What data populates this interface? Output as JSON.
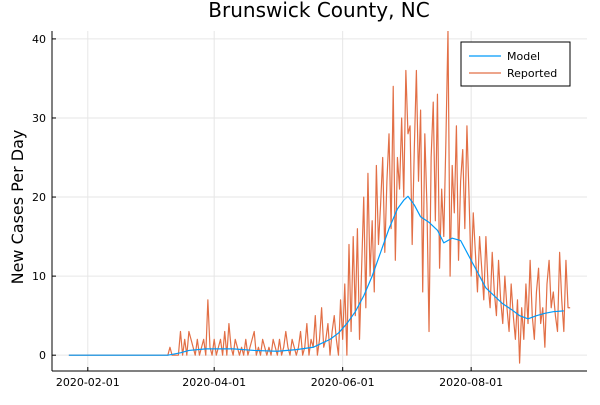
{
  "chart_data": {
    "type": "line",
    "title": "Brunswick County, NC",
    "xlabel": "",
    "ylabel": "New Cases Per Day",
    "x_start": "2020-01-23",
    "xlim": [
      "2020-01-15",
      "2020-09-25"
    ],
    "ylim": [
      -2,
      41
    ],
    "x_ticks": [
      "2020-02-01",
      "2020-04-01",
      "2020-06-01",
      "2020-08-01"
    ],
    "y_ticks": [
      0,
      10,
      20,
      30,
      40
    ],
    "grid": true,
    "legend_position": "top-right",
    "series": [
      {
        "name": "Model",
        "color": "#009af9",
        "points": [
          [
            "2020-01-23",
            0
          ],
          [
            "2020-03-10",
            0
          ],
          [
            "2020-03-16",
            0.3
          ],
          [
            "2020-03-20",
            0.6
          ],
          [
            "2020-03-28",
            0.8
          ],
          [
            "2020-04-10",
            0.8
          ],
          [
            "2020-04-20",
            0.6
          ],
          [
            "2020-05-01",
            0.5
          ],
          [
            "2020-05-10",
            0.7
          ],
          [
            "2020-05-18",
            1.0
          ],
          [
            "2020-05-22",
            1.5
          ],
          [
            "2020-05-26",
            2.0
          ],
          [
            "2020-05-30",
            2.8
          ],
          [
            "2020-06-03",
            4.0
          ],
          [
            "2020-06-07",
            5.5
          ],
          [
            "2020-06-11",
            7.5
          ],
          [
            "2020-06-15",
            10.0
          ],
          [
            "2020-06-19",
            13.0
          ],
          [
            "2020-06-23",
            16.0
          ],
          [
            "2020-06-27",
            18.5
          ],
          [
            "2020-06-30",
            19.6
          ],
          [
            "2020-07-02",
            20.1
          ],
          [
            "2020-07-05",
            19.0
          ],
          [
            "2020-07-08",
            17.5
          ],
          [
            "2020-07-12",
            16.8
          ],
          [
            "2020-07-16",
            15.8
          ],
          [
            "2020-07-19",
            14.2
          ],
          [
            "2020-07-23",
            14.8
          ],
          [
            "2020-07-27",
            14.5
          ],
          [
            "2020-07-31",
            12.5
          ],
          [
            "2020-08-04",
            10.5
          ],
          [
            "2020-08-08",
            8.5
          ],
          [
            "2020-08-12",
            7.5
          ],
          [
            "2020-08-16",
            6.5
          ],
          [
            "2020-08-20",
            5.8
          ],
          [
            "2020-08-24",
            5.0
          ],
          [
            "2020-08-28",
            4.6
          ],
          [
            "2020-09-01",
            5.0
          ],
          [
            "2020-09-05",
            5.3
          ],
          [
            "2020-09-09",
            5.5
          ],
          [
            "2020-09-14",
            5.6
          ]
        ]
      },
      {
        "name": "Reported",
        "color": "#e26f46",
        "points": [
          [
            "2020-01-23",
            0
          ],
          [
            "2020-03-10",
            0
          ],
          [
            "2020-03-11",
            1
          ],
          [
            "2020-03-12",
            0
          ],
          [
            "2020-03-15",
            0
          ],
          [
            "2020-03-16",
            3
          ],
          [
            "2020-03-17",
            0
          ],
          [
            "2020-03-18",
            2
          ],
          [
            "2020-03-19",
            0
          ],
          [
            "2020-03-20",
            3
          ],
          [
            "2020-03-21",
            2
          ],
          [
            "2020-03-22",
            1
          ],
          [
            "2020-03-23",
            0
          ],
          [
            "2020-03-24",
            2
          ],
          [
            "2020-03-25",
            0
          ],
          [
            "2020-03-26",
            1
          ],
          [
            "2020-03-27",
            2
          ],
          [
            "2020-03-28",
            0
          ],
          [
            "2020-03-29",
            7
          ],
          [
            "2020-03-30",
            1
          ],
          [
            "2020-03-31",
            0
          ],
          [
            "2020-04-01",
            2
          ],
          [
            "2020-04-02",
            0
          ],
          [
            "2020-04-03",
            1
          ],
          [
            "2020-04-04",
            2
          ],
          [
            "2020-04-05",
            0
          ],
          [
            "2020-04-06",
            3
          ],
          [
            "2020-04-07",
            0
          ],
          [
            "2020-04-08",
            4
          ],
          [
            "2020-04-09",
            1
          ],
          [
            "2020-04-10",
            0
          ],
          [
            "2020-04-11",
            2
          ],
          [
            "2020-04-12",
            1
          ],
          [
            "2020-04-13",
            0
          ],
          [
            "2020-04-14",
            1
          ],
          [
            "2020-04-15",
            0
          ],
          [
            "2020-04-16",
            2
          ],
          [
            "2020-04-17",
            0
          ],
          [
            "2020-04-18",
            1
          ],
          [
            "2020-04-20",
            3
          ],
          [
            "2020-04-21",
            0
          ],
          [
            "2020-04-22",
            1
          ],
          [
            "2020-04-23",
            0
          ],
          [
            "2020-04-24",
            2
          ],
          [
            "2020-04-25",
            1
          ],
          [
            "2020-04-26",
            0
          ],
          [
            "2020-04-27",
            1
          ],
          [
            "2020-04-28",
            0
          ],
          [
            "2020-04-29",
            2
          ],
          [
            "2020-04-30",
            1
          ],
          [
            "2020-05-01",
            0
          ],
          [
            "2020-05-02",
            2
          ],
          [
            "2020-05-03",
            0
          ],
          [
            "2020-05-04",
            1
          ],
          [
            "2020-05-05",
            3
          ],
          [
            "2020-05-06",
            1
          ],
          [
            "2020-05-07",
            0
          ],
          [
            "2020-05-08",
            2
          ],
          [
            "2020-05-09",
            1
          ],
          [
            "2020-05-10",
            0
          ],
          [
            "2020-05-11",
            1
          ],
          [
            "2020-05-12",
            3
          ],
          [
            "2020-05-13",
            0
          ],
          [
            "2020-05-14",
            1
          ],
          [
            "2020-05-15",
            4
          ],
          [
            "2020-05-16",
            0
          ],
          [
            "2020-05-17",
            2
          ],
          [
            "2020-05-18",
            1
          ],
          [
            "2020-05-19",
            5
          ],
          [
            "2020-05-20",
            0
          ],
          [
            "2020-05-21",
            2
          ],
          [
            "2020-05-22",
            6
          ],
          [
            "2020-05-23",
            1
          ],
          [
            "2020-05-24",
            2
          ],
          [
            "2020-05-25",
            4
          ],
          [
            "2020-05-26",
            0
          ],
          [
            "2020-05-27",
            3
          ],
          [
            "2020-05-28",
            5
          ],
          [
            "2020-05-29",
            2
          ],
          [
            "2020-05-30",
            0
          ],
          [
            "2020-05-31",
            7
          ],
          [
            "2020-06-01",
            2
          ],
          [
            "2020-06-02",
            9
          ],
          [
            "2020-06-03",
            0
          ],
          [
            "2020-06-04",
            14
          ],
          [
            "2020-06-05",
            3
          ],
          [
            "2020-06-06",
            15
          ],
          [
            "2020-06-07",
            5
          ],
          [
            "2020-06-08",
            16
          ],
          [
            "2020-06-09",
            2
          ],
          [
            "2020-06-10",
            11
          ],
          [
            "2020-06-11",
            20
          ],
          [
            "2020-06-12",
            6
          ],
          [
            "2020-06-13",
            23
          ],
          [
            "2020-06-14",
            10
          ],
          [
            "2020-06-15",
            17
          ],
          [
            "2020-06-16",
            8
          ],
          [
            "2020-06-17",
            24
          ],
          [
            "2020-06-18",
            14
          ],
          [
            "2020-06-19",
            19
          ],
          [
            "2020-06-20",
            25
          ],
          [
            "2020-06-21",
            13
          ],
          [
            "2020-06-22",
            22
          ],
          [
            "2020-06-23",
            28
          ],
          [
            "2020-06-24",
            16
          ],
          [
            "2020-06-25",
            34
          ],
          [
            "2020-06-26",
            12
          ],
          [
            "2020-06-27",
            25
          ],
          [
            "2020-06-28",
            21
          ],
          [
            "2020-06-29",
            30
          ],
          [
            "2020-06-30",
            20
          ],
          [
            "2020-07-01",
            36
          ],
          [
            "2020-07-02",
            28
          ],
          [
            "2020-07-03",
            29
          ],
          [
            "2020-07-04",
            14
          ],
          [
            "2020-07-05",
            26
          ],
          [
            "2020-07-06",
            36
          ],
          [
            "2020-07-07",
            22
          ],
          [
            "2020-07-08",
            31
          ],
          [
            "2020-07-09",
            8
          ],
          [
            "2020-07-10",
            28
          ],
          [
            "2020-07-11",
            19
          ],
          [
            "2020-07-12",
            3
          ],
          [
            "2020-07-13",
            25
          ],
          [
            "2020-07-14",
            32
          ],
          [
            "2020-07-15",
            17
          ],
          [
            "2020-07-16",
            33
          ],
          [
            "2020-07-17",
            11
          ],
          [
            "2020-07-18",
            21
          ],
          [
            "2020-07-19",
            15
          ],
          [
            "2020-07-20",
            27
          ],
          [
            "2020-07-21",
            41
          ],
          [
            "2020-07-22",
            10
          ],
          [
            "2020-07-23",
            24
          ],
          [
            "2020-07-24",
            18
          ],
          [
            "2020-07-25",
            29
          ],
          [
            "2020-07-26",
            12
          ],
          [
            "2020-07-27",
            22
          ],
          [
            "2020-07-28",
            26
          ],
          [
            "2020-07-29",
            16
          ],
          [
            "2020-07-30",
            29
          ],
          [
            "2020-07-31",
            20
          ],
          [
            "2020-08-01",
            10
          ],
          [
            "2020-08-02",
            18
          ],
          [
            "2020-08-03",
            13
          ],
          [
            "2020-08-04",
            8
          ],
          [
            "2020-08-05",
            15
          ],
          [
            "2020-08-06",
            11
          ],
          [
            "2020-08-07",
            7
          ],
          [
            "2020-08-08",
            15
          ],
          [
            "2020-08-09",
            9
          ],
          [
            "2020-08-10",
            6
          ],
          [
            "2020-08-11",
            13
          ],
          [
            "2020-08-12",
            8
          ],
          [
            "2020-08-13",
            5
          ],
          [
            "2020-08-14",
            12
          ],
          [
            "2020-08-15",
            7
          ],
          [
            "2020-08-16",
            4
          ],
          [
            "2020-08-17",
            10
          ],
          [
            "2020-08-18",
            6
          ],
          [
            "2020-08-19",
            3
          ],
          [
            "2020-08-20",
            9
          ],
          [
            "2020-08-21",
            5
          ],
          [
            "2020-08-22",
            2
          ],
          [
            "2020-08-23",
            7
          ],
          [
            "2020-08-24",
            -1
          ],
          [
            "2020-08-25",
            6
          ],
          [
            "2020-08-26",
            2
          ],
          [
            "2020-08-27",
            9
          ],
          [
            "2020-08-28",
            4
          ],
          [
            "2020-08-29",
            12
          ],
          [
            "2020-08-30",
            5
          ],
          [
            "2020-08-31",
            2
          ],
          [
            "2020-09-01",
            8
          ],
          [
            "2020-09-02",
            11
          ],
          [
            "2020-09-03",
            4
          ],
          [
            "2020-09-04",
            6
          ],
          [
            "2020-09-05",
            1
          ],
          [
            "2020-09-06",
            9
          ],
          [
            "2020-09-07",
            12
          ],
          [
            "2020-09-08",
            6
          ],
          [
            "2020-09-09",
            8
          ],
          [
            "2020-09-10",
            5
          ],
          [
            "2020-09-11",
            3
          ],
          [
            "2020-09-12",
            13
          ],
          [
            "2020-09-13",
            7
          ],
          [
            "2020-09-14",
            3
          ],
          [
            "2020-09-15",
            12
          ],
          [
            "2020-09-16",
            6
          ],
          [
            "2020-09-17",
            6
          ]
        ]
      }
    ]
  }
}
